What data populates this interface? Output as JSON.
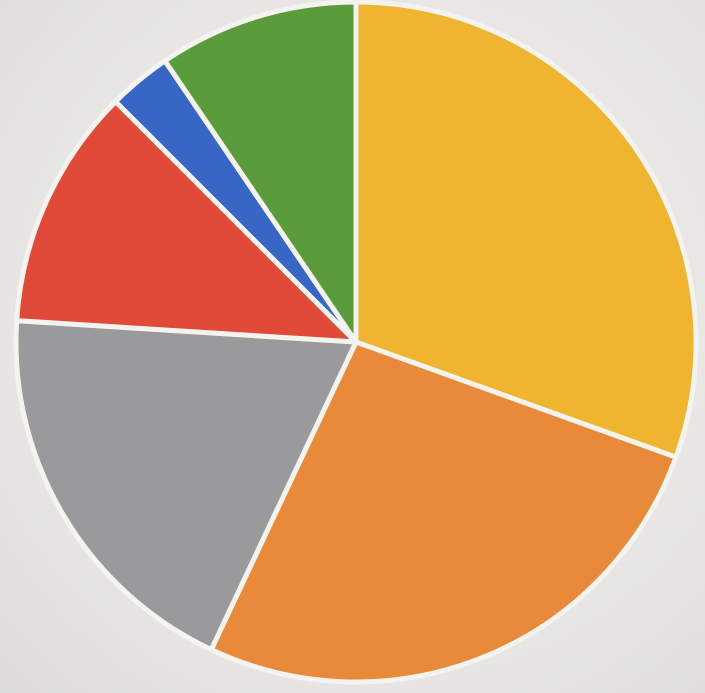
{
  "chart_data": {
    "type": "pie",
    "start_angle": "12 o'clock",
    "direction": "clockwise",
    "slices": [
      {
        "value": 30.5,
        "color": "#efb531"
      },
      {
        "value": 26.5,
        "color": "#e88a3a"
      },
      {
        "value": 19.0,
        "color": "#9a9a9c"
      },
      {
        "value": 11.5,
        "color": "#e04a38"
      },
      {
        "value": 3.0,
        "color": "#3766c4"
      },
      {
        "value": 9.5,
        "color": "#5a9c3c"
      }
    ],
    "legend": false
  }
}
